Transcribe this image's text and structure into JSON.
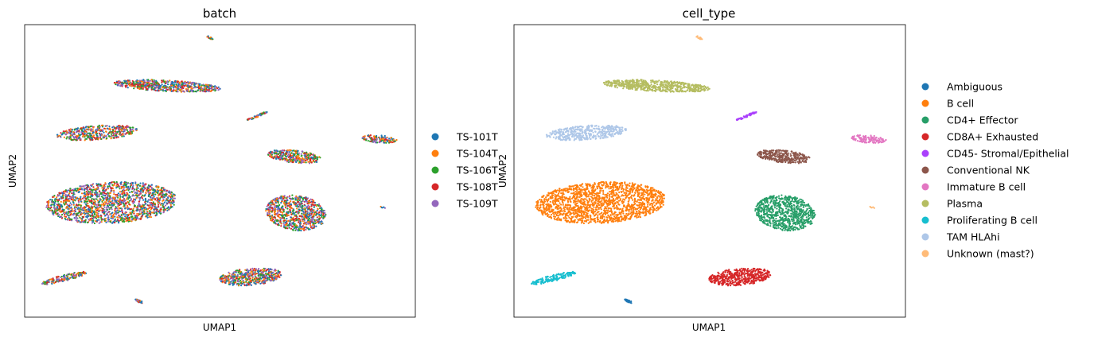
{
  "chart_data": [
    {
      "type": "scatter",
      "title": "batch",
      "xlabel": "UMAP1",
      "ylabel": "UMAP2",
      "grid": false,
      "ticks": false,
      "legend": "right",
      "series": [
        {
          "name": "TS-101T",
          "color": "#1f77b4"
        },
        {
          "name": "TS-104T",
          "color": "#ff7f0e"
        },
        {
          "name": "TS-106T",
          "color": "#2ca02c"
        },
        {
          "name": "TS-108T",
          "color": "#d62728"
        },
        {
          "name": "TS-109T",
          "color": "#9467bd"
        }
      ]
    },
    {
      "type": "scatter",
      "title": "cell_type",
      "xlabel": "UMAP1",
      "ylabel": "UMAP2",
      "grid": false,
      "ticks": false,
      "legend": "right",
      "series": [
        {
          "name": "Ambiguous",
          "color": "#1f77b4"
        },
        {
          "name": "B cell",
          "color": "#ff7f0e"
        },
        {
          "name": "CD4+ Effector",
          "color": "#279e68"
        },
        {
          "name": "CD8A+ Exhausted",
          "color": "#d62728"
        },
        {
          "name": "CD45- Stromal/Epithelial",
          "color": "#aa40fc"
        },
        {
          "name": "Conventional NK",
          "color": "#8c564b"
        },
        {
          "name": "Immature B cell",
          "color": "#e377c2"
        },
        {
          "name": "Plasma",
          "color": "#b5bd61"
        },
        {
          "name": "Proliferating B cell",
          "color": "#17becf"
        },
        {
          "name": "TAM HLAhi",
          "color": "#aec7e8"
        },
        {
          "name": "Unknown (mast?)",
          "color": "#ffbb78"
        }
      ]
    }
  ]
}
